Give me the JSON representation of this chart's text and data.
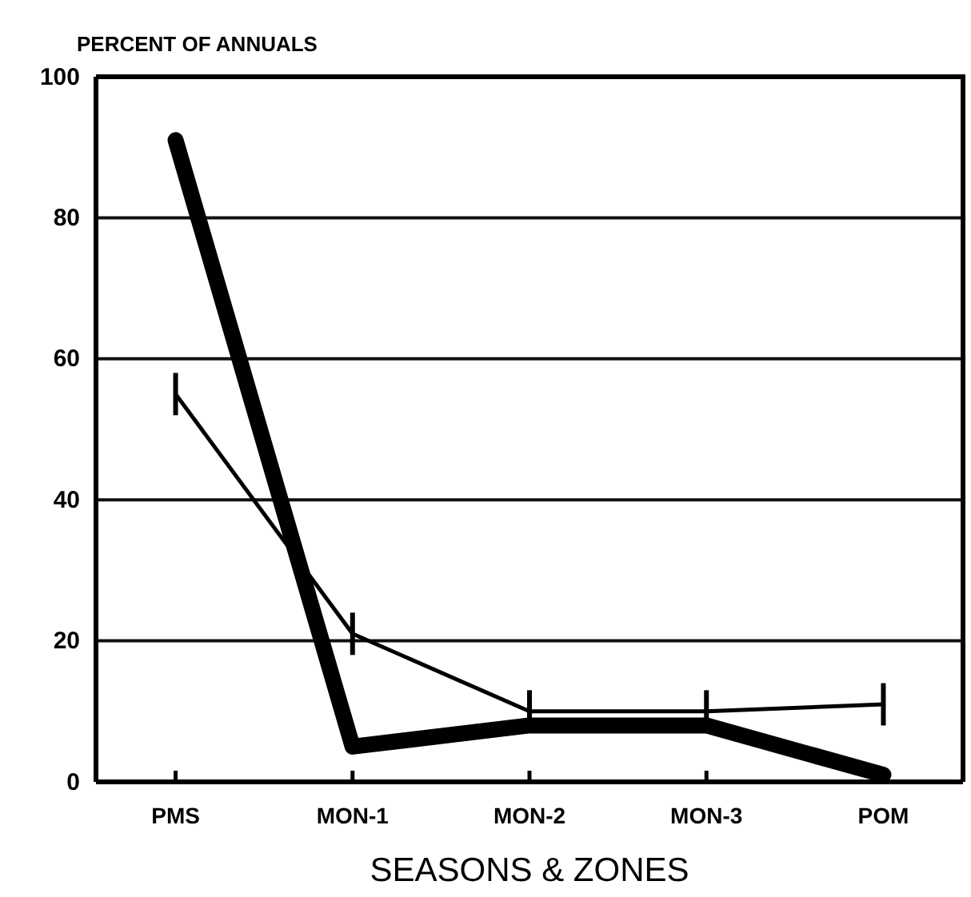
{
  "chart_data": {
    "type": "line",
    "xlabel": "SEASONS & ZONES",
    "ylabel": "PERCENT OF ANNUALS",
    "categories": [
      "PMS",
      "MON-1",
      "MON-2",
      "MON-3",
      "POM"
    ],
    "series": [
      {
        "color": "#000000",
        "values": [
          91,
          5,
          8,
          8,
          1
        ]
      },
      {
        "color": "#000000",
        "values": [
          55,
          21,
          10,
          10,
          11
        ],
        "errors": [
          3,
          3,
          3,
          3,
          3
        ]
      }
    ],
    "ylim": [
      0,
      100
    ],
    "yticks": [
      0,
      20,
      40,
      60,
      80,
      100
    ],
    "grid": "y",
    "line_style": "solid"
  }
}
